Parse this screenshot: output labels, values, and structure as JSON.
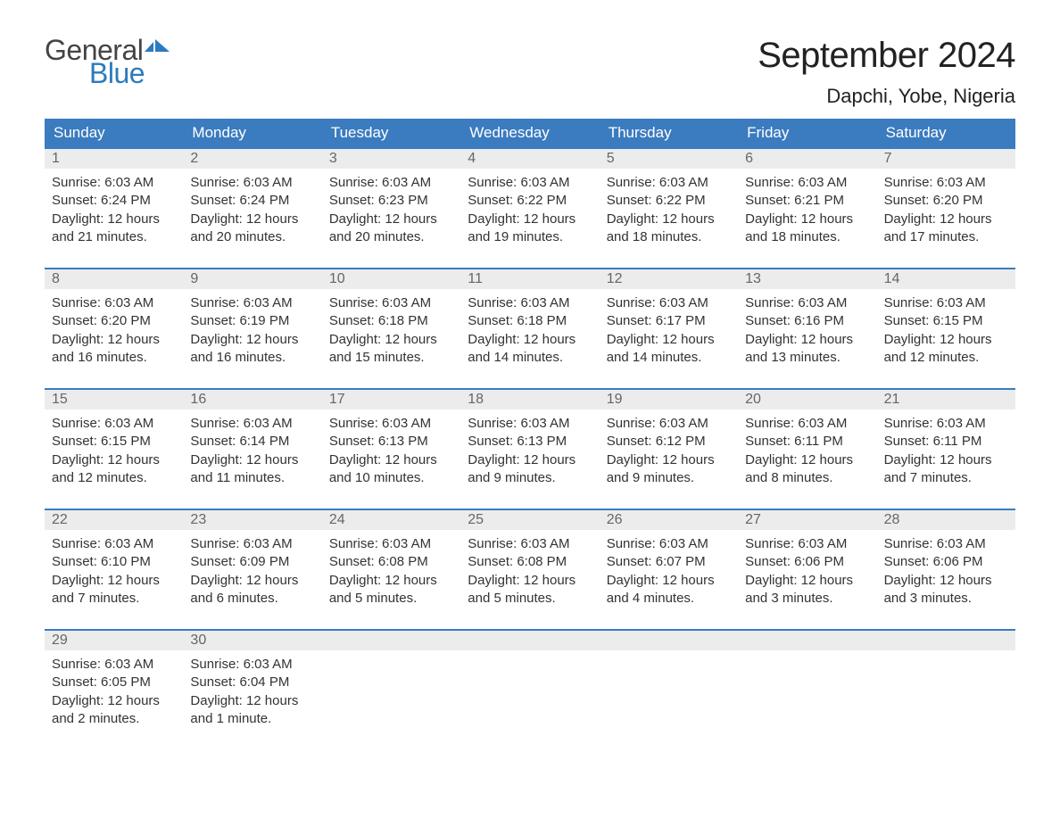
{
  "logo": {
    "general": "General",
    "blue": "Blue",
    "flag_color": "#2b7bbd"
  },
  "title": "September 2024",
  "location": "Dapchi, Yobe, Nigeria",
  "colors": {
    "header_bg": "#3b7bbf",
    "header_text": "#ffffff",
    "daynum_bg": "#ececec",
    "daynum_text": "#666666",
    "body_text": "#333333",
    "rule": "#3b7bbf"
  },
  "dayNames": [
    "Sunday",
    "Monday",
    "Tuesday",
    "Wednesday",
    "Thursday",
    "Friday",
    "Saturday"
  ],
  "labels": {
    "sunrise": "Sunrise:",
    "sunset": "Sunset:",
    "daylight": "Daylight:"
  },
  "weeks": [
    [
      {
        "n": "1",
        "sunrise": "6:03 AM",
        "sunset": "6:24 PM",
        "daylight1": "12 hours",
        "daylight2": "and 21 minutes."
      },
      {
        "n": "2",
        "sunrise": "6:03 AM",
        "sunset": "6:24 PM",
        "daylight1": "12 hours",
        "daylight2": "and 20 minutes."
      },
      {
        "n": "3",
        "sunrise": "6:03 AM",
        "sunset": "6:23 PM",
        "daylight1": "12 hours",
        "daylight2": "and 20 minutes."
      },
      {
        "n": "4",
        "sunrise": "6:03 AM",
        "sunset": "6:22 PM",
        "daylight1": "12 hours",
        "daylight2": "and 19 minutes."
      },
      {
        "n": "5",
        "sunrise": "6:03 AM",
        "sunset": "6:22 PM",
        "daylight1": "12 hours",
        "daylight2": "and 18 minutes."
      },
      {
        "n": "6",
        "sunrise": "6:03 AM",
        "sunset": "6:21 PM",
        "daylight1": "12 hours",
        "daylight2": "and 18 minutes."
      },
      {
        "n": "7",
        "sunrise": "6:03 AM",
        "sunset": "6:20 PM",
        "daylight1": "12 hours",
        "daylight2": "and 17 minutes."
      }
    ],
    [
      {
        "n": "8",
        "sunrise": "6:03 AM",
        "sunset": "6:20 PM",
        "daylight1": "12 hours",
        "daylight2": "and 16 minutes."
      },
      {
        "n": "9",
        "sunrise": "6:03 AM",
        "sunset": "6:19 PM",
        "daylight1": "12 hours",
        "daylight2": "and 16 minutes."
      },
      {
        "n": "10",
        "sunrise": "6:03 AM",
        "sunset": "6:18 PM",
        "daylight1": "12 hours",
        "daylight2": "and 15 minutes."
      },
      {
        "n": "11",
        "sunrise": "6:03 AM",
        "sunset": "6:18 PM",
        "daylight1": "12 hours",
        "daylight2": "and 14 minutes."
      },
      {
        "n": "12",
        "sunrise": "6:03 AM",
        "sunset": "6:17 PM",
        "daylight1": "12 hours",
        "daylight2": "and 14 minutes."
      },
      {
        "n": "13",
        "sunrise": "6:03 AM",
        "sunset": "6:16 PM",
        "daylight1": "12 hours",
        "daylight2": "and 13 minutes."
      },
      {
        "n": "14",
        "sunrise": "6:03 AM",
        "sunset": "6:15 PM",
        "daylight1": "12 hours",
        "daylight2": "and 12 minutes."
      }
    ],
    [
      {
        "n": "15",
        "sunrise": "6:03 AM",
        "sunset": "6:15 PM",
        "daylight1": "12 hours",
        "daylight2": "and 12 minutes."
      },
      {
        "n": "16",
        "sunrise": "6:03 AM",
        "sunset": "6:14 PM",
        "daylight1": "12 hours",
        "daylight2": "and 11 minutes."
      },
      {
        "n": "17",
        "sunrise": "6:03 AM",
        "sunset": "6:13 PM",
        "daylight1": "12 hours",
        "daylight2": "and 10 minutes."
      },
      {
        "n": "18",
        "sunrise": "6:03 AM",
        "sunset": "6:13 PM",
        "daylight1": "12 hours",
        "daylight2": "and 9 minutes."
      },
      {
        "n": "19",
        "sunrise": "6:03 AM",
        "sunset": "6:12 PM",
        "daylight1": "12 hours",
        "daylight2": "and 9 minutes."
      },
      {
        "n": "20",
        "sunrise": "6:03 AM",
        "sunset": "6:11 PM",
        "daylight1": "12 hours",
        "daylight2": "and 8 minutes."
      },
      {
        "n": "21",
        "sunrise": "6:03 AM",
        "sunset": "6:11 PM",
        "daylight1": "12 hours",
        "daylight2": "and 7 minutes."
      }
    ],
    [
      {
        "n": "22",
        "sunrise": "6:03 AM",
        "sunset": "6:10 PM",
        "daylight1": "12 hours",
        "daylight2": "and 7 minutes."
      },
      {
        "n": "23",
        "sunrise": "6:03 AM",
        "sunset": "6:09 PM",
        "daylight1": "12 hours",
        "daylight2": "and 6 minutes."
      },
      {
        "n": "24",
        "sunrise": "6:03 AM",
        "sunset": "6:08 PM",
        "daylight1": "12 hours",
        "daylight2": "and 5 minutes."
      },
      {
        "n": "25",
        "sunrise": "6:03 AM",
        "sunset": "6:08 PM",
        "daylight1": "12 hours",
        "daylight2": "and 5 minutes."
      },
      {
        "n": "26",
        "sunrise": "6:03 AM",
        "sunset": "6:07 PM",
        "daylight1": "12 hours",
        "daylight2": "and 4 minutes."
      },
      {
        "n": "27",
        "sunrise": "6:03 AM",
        "sunset": "6:06 PM",
        "daylight1": "12 hours",
        "daylight2": "and 3 minutes."
      },
      {
        "n": "28",
        "sunrise": "6:03 AM",
        "sunset": "6:06 PM",
        "daylight1": "12 hours",
        "daylight2": "and 3 minutes."
      }
    ],
    [
      {
        "n": "29",
        "sunrise": "6:03 AM",
        "sunset": "6:05 PM",
        "daylight1": "12 hours",
        "daylight2": "and 2 minutes."
      },
      {
        "n": "30",
        "sunrise": "6:03 AM",
        "sunset": "6:04 PM",
        "daylight1": "12 hours",
        "daylight2": "and 1 minute."
      },
      null,
      null,
      null,
      null,
      null
    ]
  ]
}
